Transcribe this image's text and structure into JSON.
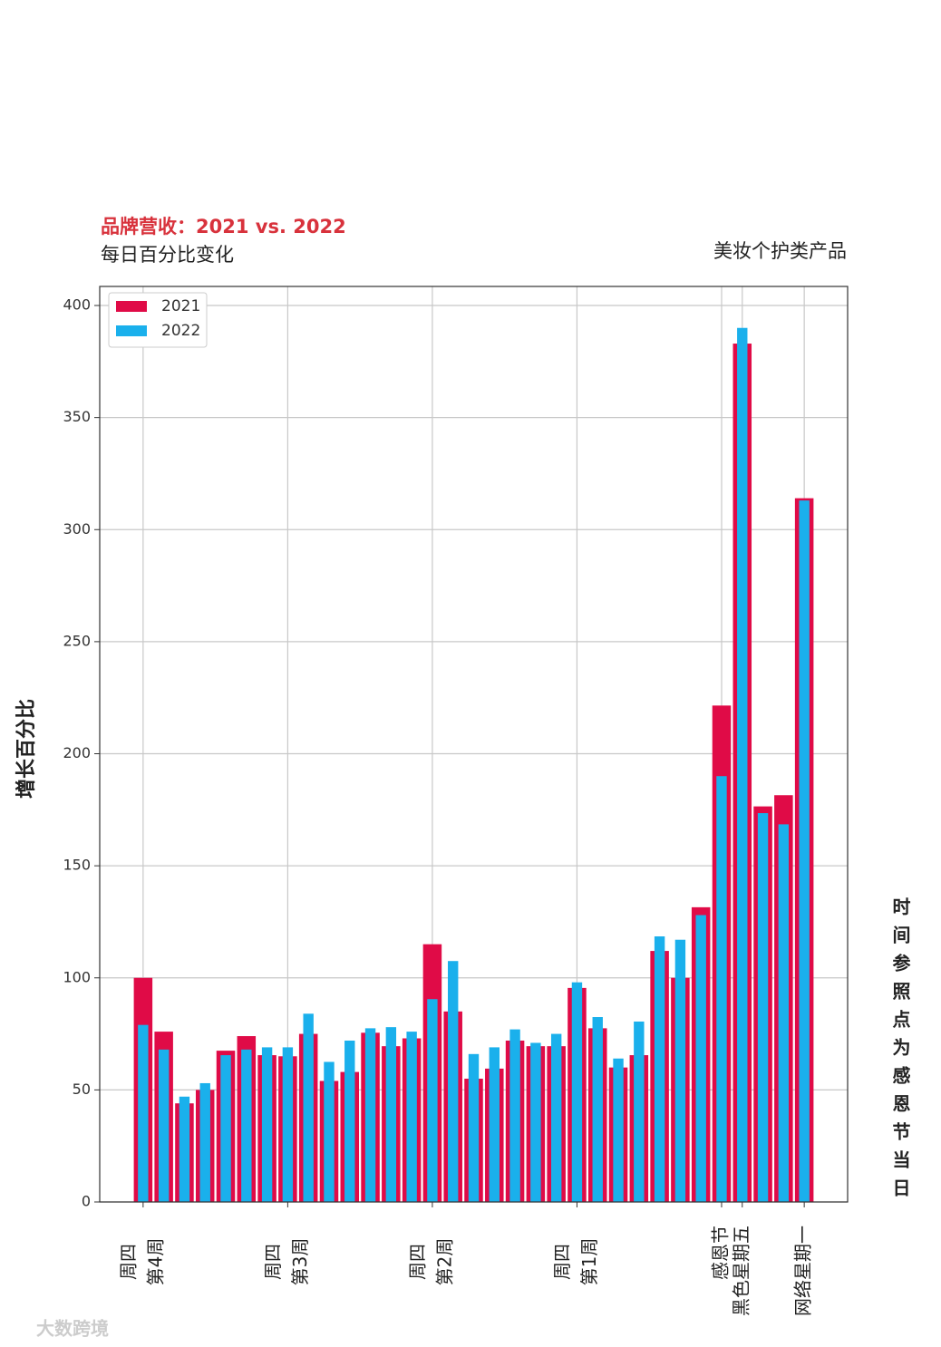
{
  "chart_data": {
    "type": "bar",
    "title": "品牌营收：2021 vs. 2022",
    "subtitle": "每日百分比变化",
    "corner_note": "美妆个护类产品",
    "y_label": "增长百分比",
    "x_label": "时间参照点为感恩节当日",
    "watermark": "大数跨境",
    "x": [
      0,
      1,
      2,
      3,
      4,
      5,
      6,
      7,
      8,
      9,
      10,
      11,
      12,
      13,
      14,
      15,
      16,
      17,
      18,
      19,
      20,
      21,
      22,
      23,
      24,
      25,
      26,
      27,
      28,
      29,
      30,
      31,
      32
    ],
    "series": [
      {
        "name": "2021",
        "color": "#e00b47",
        "values": [
          100,
          76,
          44,
          50,
          67.5,
          74,
          65.5,
          65,
          75,
          54,
          58,
          75.5,
          69.5,
          73,
          115,
          85,
          55,
          59.5,
          72,
          69.5,
          69.5,
          95.5,
          77.5,
          60,
          65.5,
          112,
          100,
          131.5,
          221.5,
          383,
          176.5,
          181.5,
          314
        ]
      },
      {
        "name": "2022",
        "color": "#1ab0ec",
        "values": [
          79,
          68,
          47,
          53,
          65.5,
          68,
          69,
          69,
          84,
          62.5,
          72,
          77.5,
          78,
          76,
          90.5,
          107.5,
          66,
          69,
          77,
          71,
          75,
          98,
          82.5,
          64,
          80.5,
          118.5,
          117,
          128,
          190,
          390,
          173.5,
          168.5,
          313
        ]
      }
    ],
    "xlim": [
      -2.1,
      34.1
    ],
    "xticks": [
      {
        "value": 0,
        "label": [
          "周四",
          "第4周"
        ]
      },
      {
        "value": 7,
        "label": [
          "周四",
          "第3周"
        ]
      },
      {
        "value": 14,
        "label": [
          "周四",
          "第2周"
        ]
      },
      {
        "value": 21,
        "label": [
          "周四",
          "第1周"
        ]
      },
      {
        "value": 28,
        "label": [
          "感恩节"
        ]
      },
      {
        "value": 29,
        "label": [
          "黑色星期五"
        ]
      },
      {
        "value": 32,
        "label": [
          "网络星期一"
        ]
      }
    ],
    "ylim": [
      0,
      408.5
    ],
    "yticks": [
      0,
      50,
      100,
      150,
      200,
      250,
      300,
      350,
      400
    ],
    "grid": true,
    "legend": "upper-left"
  }
}
